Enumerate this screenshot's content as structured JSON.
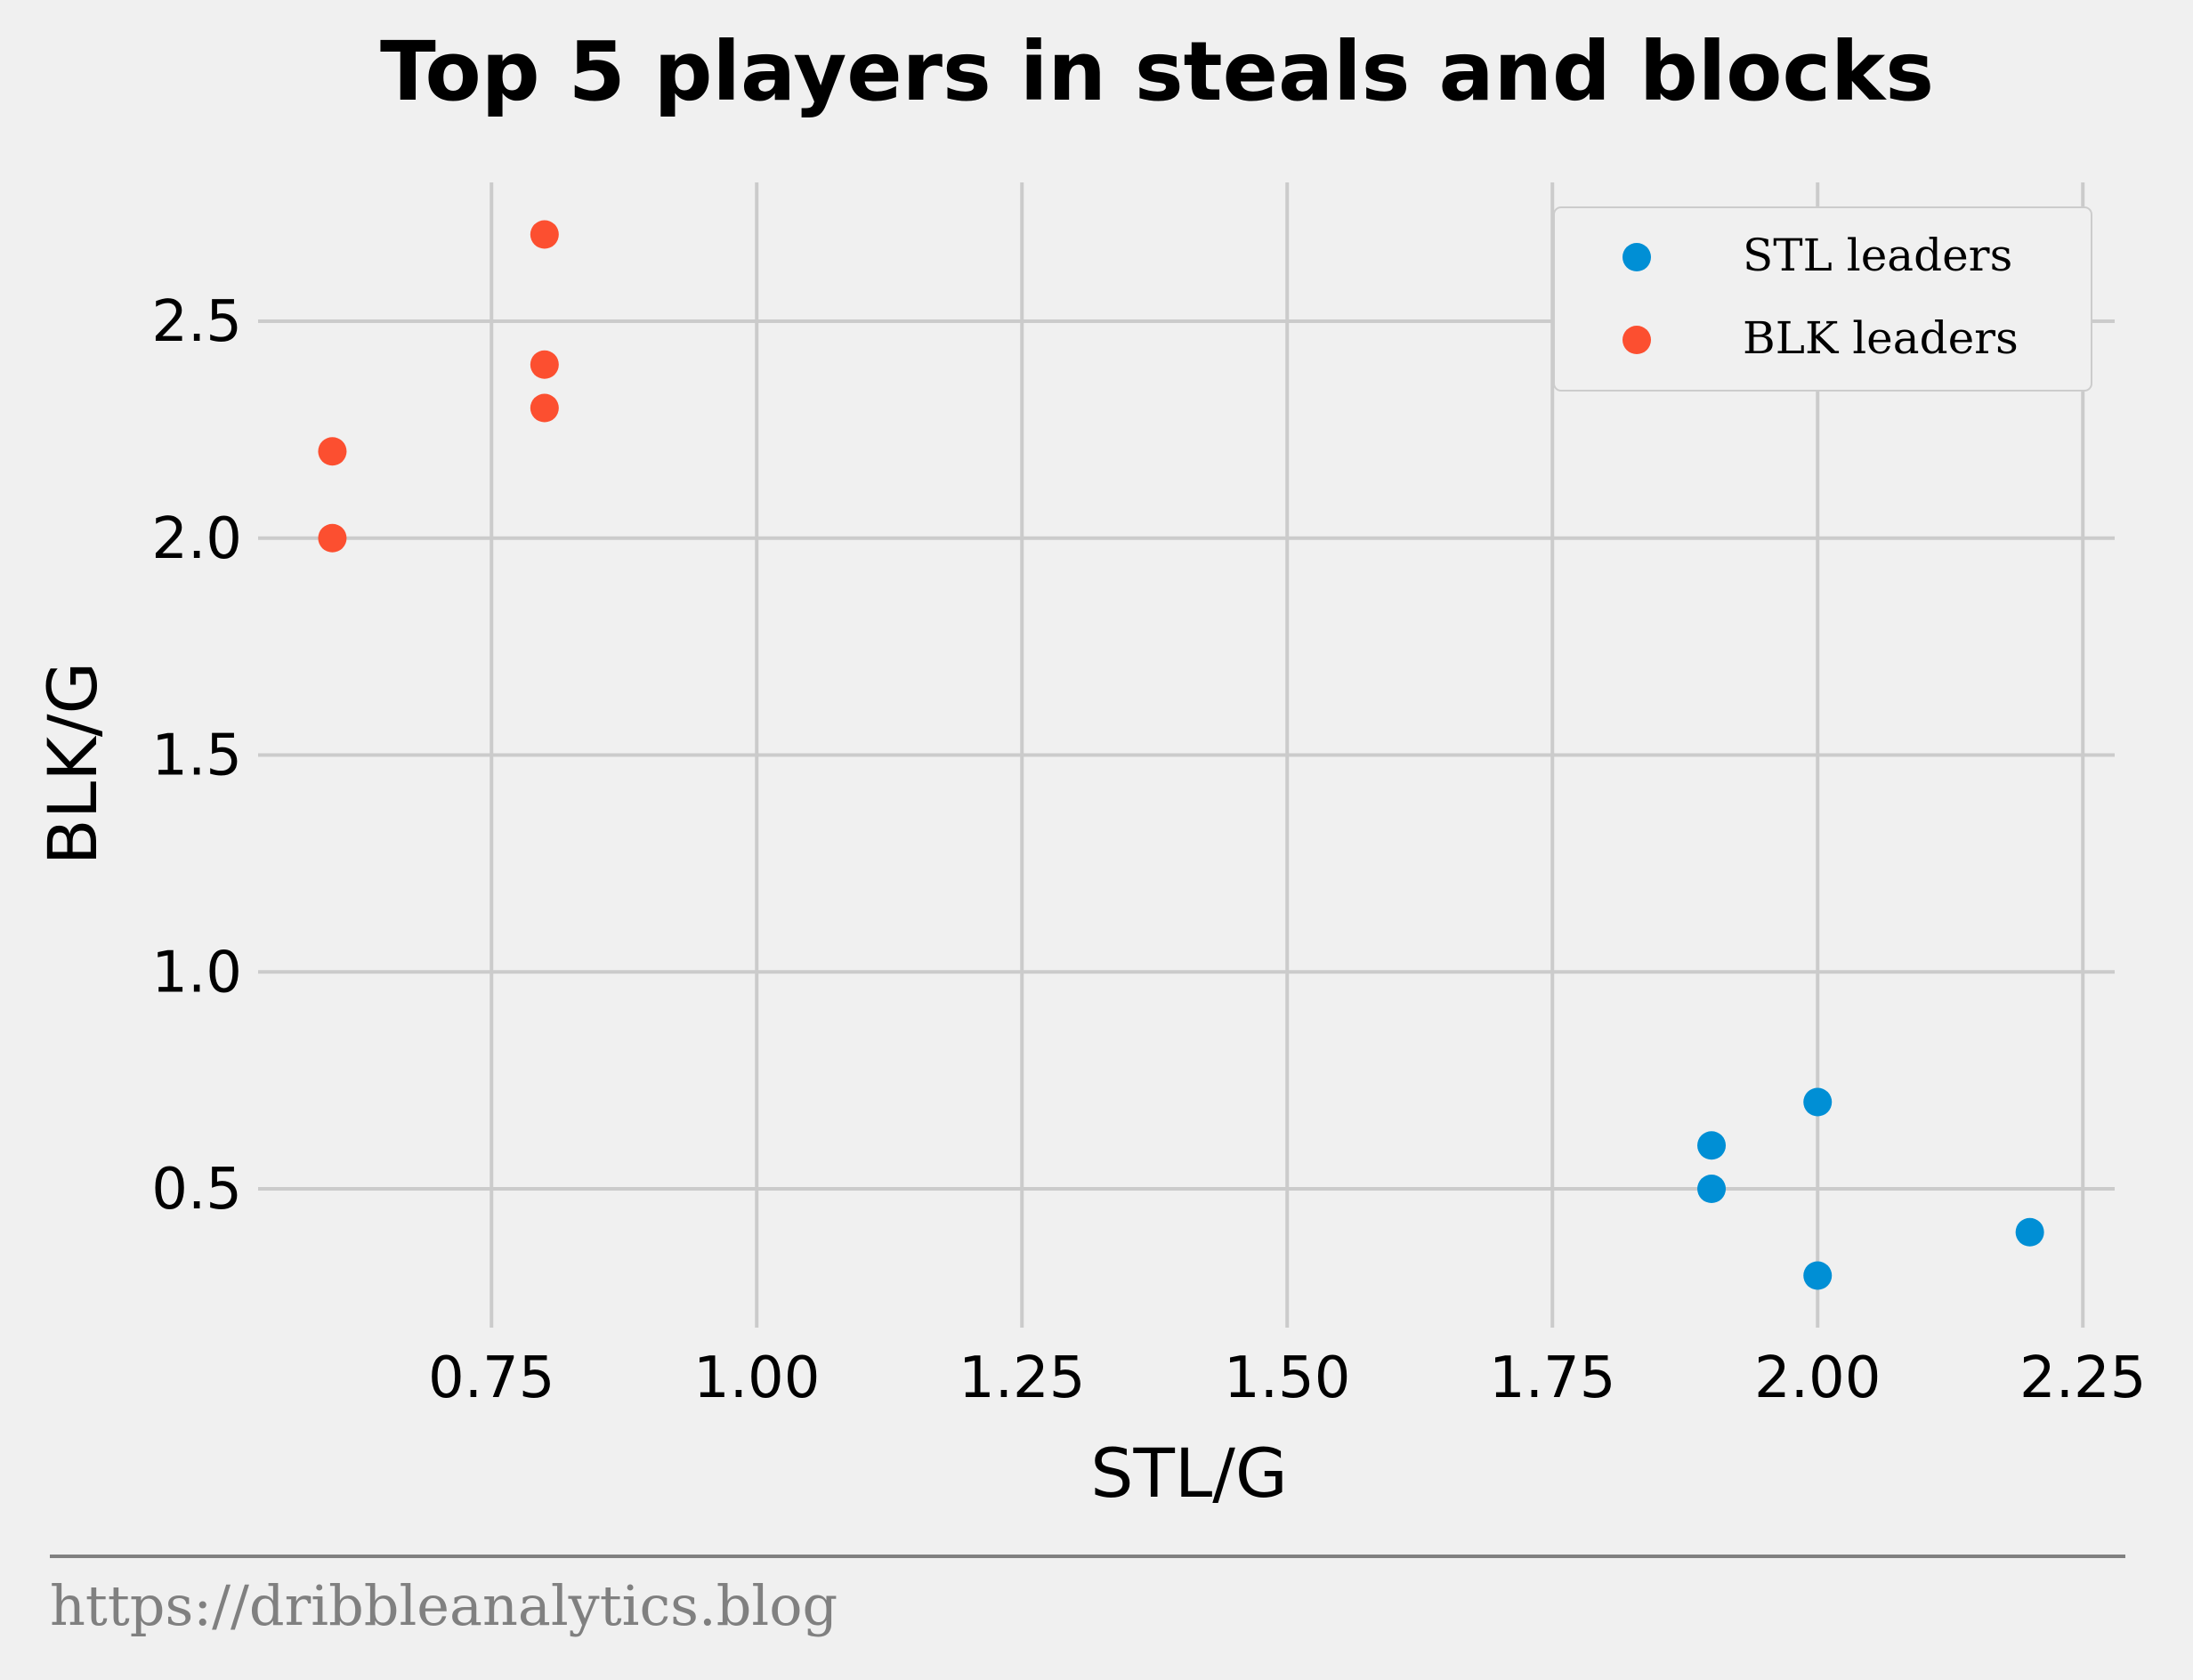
{
  "chart_data": {
    "type": "scatter",
    "title": "Top 5 players in steals and blocks",
    "xlabel": "STL/G",
    "ylabel": "BLK/G",
    "xlim": [
      0.53,
      2.28
    ],
    "ylim": [
      0.18,
      2.82
    ],
    "xticks": [
      0.75,
      1.0,
      1.25,
      1.5,
      1.75,
      2.0,
      2.25
    ],
    "xtick_labels": [
      "0.75",
      "1.00",
      "1.25",
      "1.50",
      "1.75",
      "2.00",
      "2.25"
    ],
    "yticks": [
      0.5,
      1.0,
      1.5,
      2.0,
      2.5
    ],
    "ytick_labels": [
      "0.5",
      "1.0",
      "1.5",
      "2.0",
      "2.5"
    ],
    "grid": true,
    "legend_position": "top-right",
    "series": [
      {
        "name": "STL leaders",
        "color": "#008fd5",
        "points": [
          [
            2.2,
            0.4
          ],
          [
            2.0,
            0.7
          ],
          [
            2.0,
            0.3
          ],
          [
            1.9,
            0.6
          ],
          [
            1.9,
            0.5
          ]
        ]
      },
      {
        "name": "BLK leaders",
        "color": "#fc4f30",
        "points": [
          [
            0.8,
            2.7
          ],
          [
            0.8,
            2.4
          ],
          [
            0.8,
            2.3
          ],
          [
            0.6,
            2.2
          ],
          [
            0.6,
            2.0
          ]
        ]
      }
    ]
  },
  "footer": {
    "text": "https://dribbleanalytics.blog"
  }
}
